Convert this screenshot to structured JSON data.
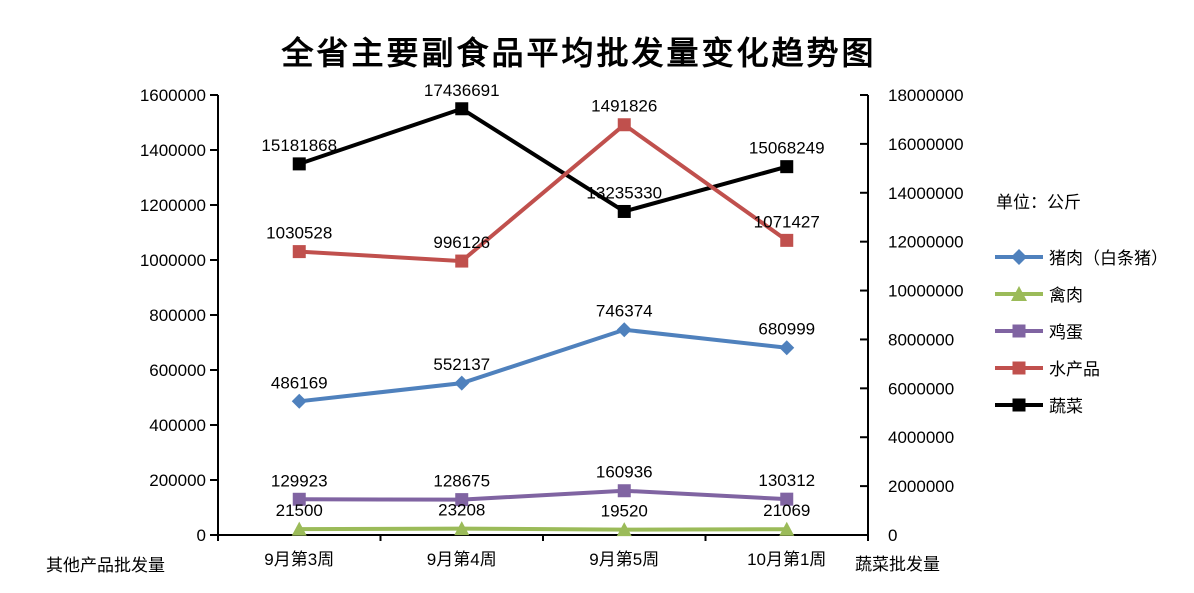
{
  "chart_data": {
    "type": "line",
    "title": "全省主要副食品平均批发量变化趋势图",
    "unit_note": "单位：公斤",
    "categories": [
      "9月第3周",
      "9月第4周",
      "9月第5周",
      "10月第1周"
    ],
    "series": [
      {
        "name": "猪肉（白条猪）",
        "axis": "left",
        "color": "#4F81BD",
        "marker": "diamond",
        "values": [
          486169,
          552137,
          746374,
          680999
        ]
      },
      {
        "name": "禽肉",
        "axis": "left",
        "color": "#9BBB59",
        "marker": "triangle",
        "values": [
          21500,
          23208,
          19520,
          21069
        ]
      },
      {
        "name": "鸡蛋",
        "axis": "left",
        "color": "#8064A2",
        "marker": "square",
        "values": [
          129923,
          128675,
          160936,
          130312
        ]
      },
      {
        "name": "水产品",
        "axis": "left",
        "color": "#C0504D",
        "marker": "square",
        "values": [
          1030528,
          996126,
          1491826,
          1071427
        ]
      },
      {
        "name": "蔬菜",
        "axis": "right",
        "color": "#000000",
        "marker": "square",
        "values": [
          15181868,
          17436691,
          13235330,
          15068249
        ]
      }
    ],
    "axes": {
      "left": {
        "title": "其他产品批发量",
        "min": 0,
        "max": 1600000,
        "ticks": [
          "0",
          "200000",
          "400000",
          "600000",
          "800000",
          "1000000",
          "1200000",
          "1400000",
          "1600000"
        ]
      },
      "right": {
        "title": "蔬菜批发量",
        "min": 0,
        "max": 18000000,
        "ticks": [
          "0",
          "2000000",
          "4000000",
          "6000000",
          "8000000",
          "10000000",
          "12000000",
          "14000000",
          "16000000",
          "18000000"
        ]
      }
    },
    "legend_position": "right",
    "grid": false,
    "data_labels": "above"
  }
}
